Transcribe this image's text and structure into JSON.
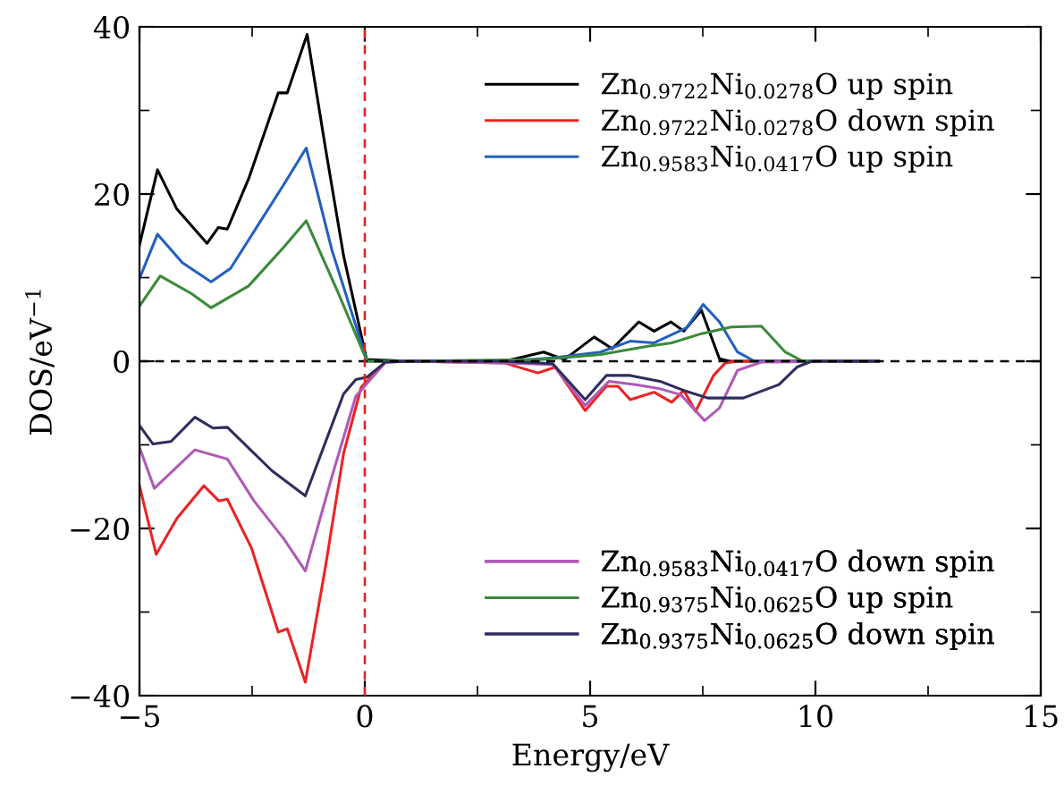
{
  "chart_data": {
    "type": "line",
    "xlabel": "Energy/eV",
    "ylabel": "DOS/eV$^{−1}$",
    "xlim": [
      -5,
      15
    ],
    "xticks": [
      {
        "value": -5,
        "label": "−5"
      },
      0,
      5,
      10,
      15
    ],
    "ylim": [
      -40,
      40
    ],
    "yticks": [
      {
        "value": -40,
        "label": "−40"
      },
      {
        "value": -20,
        "label": "−20"
      },
      0,
      20,
      40
    ],
    "grid": false,
    "legend": "right",
    "marker": "none",
    "line_style": "solid",
    "ref_lines": [
      {
        "axis": "y",
        "value": 0,
        "color": "#000000",
        "line_style": "dashed"
      },
      {
        "axis": "x",
        "value": 0,
        "color": "#e02020",
        "line_style": "dashed"
      }
    ],
    "series": [
      {
        "name": "Zn$_{0.9722}$Ni$_{0.0278}$O up spin",
        "color": "#000000",
        "x": [
          -5,
          -4.6,
          -4.17,
          -3.5,
          -3.25,
          -3.05,
          -2.58,
          -1.92,
          -1.72,
          -1.28,
          -0.87,
          -0.47,
          0.04,
          1,
          3.1,
          3.97,
          4.43,
          5.09,
          5.49,
          6.08,
          6.42,
          6.79,
          7.08,
          7.47,
          7.87,
          8.1,
          11.4
        ],
        "values": [
          13.9,
          22.9,
          18.2,
          14.1,
          16,
          15.8,
          21.8,
          32.1,
          32.1,
          39.1,
          25.4,
          12.6,
          0.2,
          0,
          0,
          1.1,
          0.2,
          2.9,
          1.5,
          4.7,
          3.6,
          4.7,
          3.6,
          6.1,
          0.3,
          0,
          0
        ]
      },
      {
        "name": "Zn$_{0.9722}$Ni$_{0.0278}$O down spin",
        "color": "#ee2222",
        "x": [
          -5,
          -4.63,
          -4.17,
          -3.57,
          -3.24,
          -3.05,
          -2.51,
          -1.92,
          -1.72,
          -1.32,
          -0.87,
          -0.47,
          -0.08,
          0.46,
          1,
          3.1,
          3.84,
          4.23,
          4.89,
          5.36,
          5.62,
          5.89,
          6.42,
          6.81,
          7.08,
          7.34,
          7.74,
          8.0,
          8.27,
          11.4
        ],
        "values": [
          -14.9,
          -23.1,
          -18.8,
          -14.9,
          -16.7,
          -16.5,
          -22.4,
          -32.4,
          -32,
          -38.4,
          -24.5,
          -11,
          -3.1,
          -0.1,
          0,
          -0.2,
          -1.4,
          -0.7,
          -5.9,
          -3,
          -3,
          -4.6,
          -3.7,
          -4.9,
          -3.5,
          -6,
          -1.7,
          -0.2,
          0,
          0
        ]
      },
      {
        "name": "Zn$_{0.9583}$Ni$_{0.0417}$O up spin",
        "color": "#2160c0",
        "x": [
          -5,
          -4.6,
          -4.05,
          -3.41,
          -2.98,
          -1.79,
          -1.3,
          -0.73,
          0.05,
          1,
          3.1,
          4.17,
          5.23,
          5.89,
          6.42,
          7.14,
          7.51,
          7.87,
          8.27,
          8.65,
          11.4
        ],
        "values": [
          9.9,
          15.2,
          11.8,
          9.5,
          11.1,
          21.2,
          25.5,
          13.3,
          0,
          0,
          0,
          0.4,
          1.1,
          2.4,
          2.2,
          4,
          6.8,
          4.7,
          1.1,
          0,
          0
        ]
      },
      {
        "name": "Zn$_{0.9583}$Ni$_{0.0417}$O down spin",
        "color": "#b05ab5",
        "x": [
          -5,
          -4.67,
          -3.77,
          -3.05,
          -2.46,
          -1.79,
          -1.32,
          -0.73,
          -0.2,
          0.46,
          1,
          3.1,
          4.17,
          4.89,
          5.42,
          6.02,
          6.55,
          7.01,
          7.54,
          7.87,
          8.27,
          8.8,
          11.4
        ],
        "values": [
          -10.3,
          -15.2,
          -10.6,
          -11.7,
          -16.7,
          -21.3,
          -25.1,
          -13.8,
          -4.2,
          -0.1,
          0,
          -0.2,
          -0.4,
          -5.3,
          -2.4,
          -2.8,
          -3.3,
          -4,
          -7.1,
          -5.6,
          -1.1,
          -0.1,
          0
        ]
      },
      {
        "name": "Zn$_{0.9375}$Ni$_{0.0625}$O up spin",
        "color": "#3a8a3a",
        "x": [
          -5,
          -4.54,
          -3.85,
          -3.41,
          -2.58,
          -1.79,
          -1.3,
          -0.6,
          0.05,
          1,
          3.9,
          5.23,
          6.28,
          6.81,
          7.47,
          8.13,
          8.8,
          9.33,
          9.72,
          11.4
        ],
        "values": [
          6.6,
          10.2,
          8.1,
          6.4,
          9,
          13.7,
          16.8,
          8.3,
          0,
          0,
          0.2,
          0.8,
          1.8,
          2.2,
          3.3,
          4.1,
          4.2,
          1.1,
          0,
          0
        ]
      },
      {
        "name": "Zn$_{0.9375}$Ni$_{0.0625}$O down spin",
        "color": "#2e2d5e",
        "x": [
          -5,
          -4.7,
          -4.3,
          -3.77,
          -3.37,
          -3.05,
          -2.06,
          -1.32,
          -0.47,
          -0.2,
          0.05,
          0.46,
          1,
          3.1,
          4.17,
          4.89,
          5.36,
          5.89,
          6.55,
          7.08,
          7.61,
          8.4,
          9.19,
          9.59,
          9.92,
          11.4
        ],
        "values": [
          -7.7,
          -9.9,
          -9.6,
          -6.7,
          -8,
          -7.9,
          -13.1,
          -16.1,
          -3.9,
          -2.2,
          -1.9,
          -0.1,
          0,
          0,
          -0.3,
          -4.6,
          -1.7,
          -1.7,
          -2.4,
          -3.5,
          -4.4,
          -4.4,
          -2.8,
          -0.7,
          0,
          0
        ]
      }
    ]
  }
}
